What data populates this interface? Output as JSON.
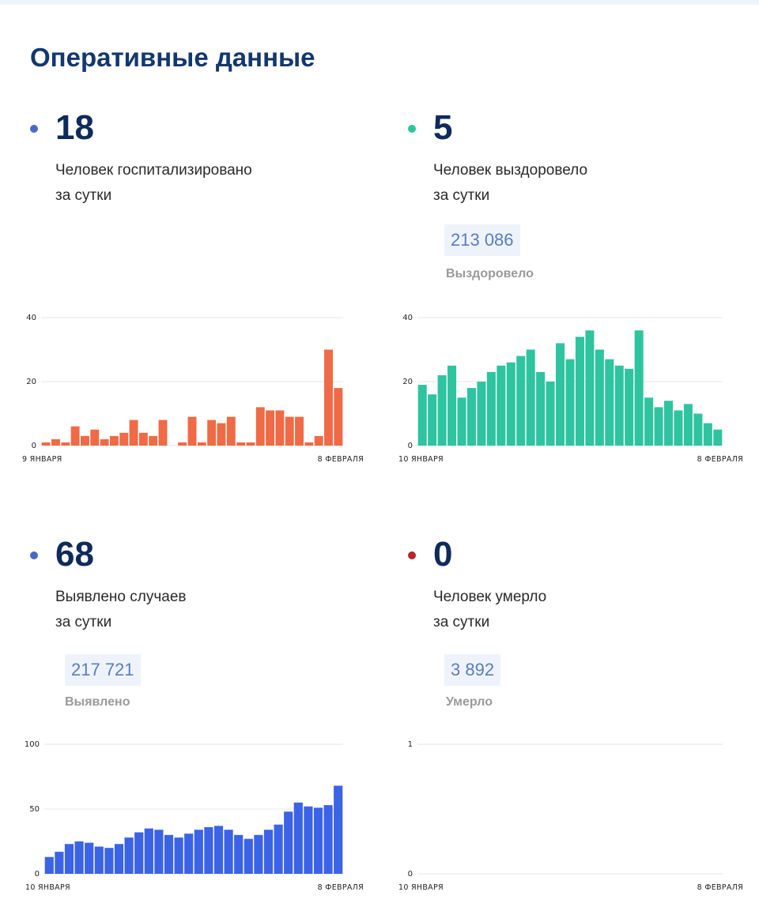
{
  "heading": "Оперативные данные",
  "stats": [
    {
      "key": "hosp",
      "value": "18",
      "desc": "Человек госпитализировано\nза сутки",
      "dot_color": "#4a68c9"
    },
    {
      "key": "recov",
      "value": "5",
      "desc": "Человек выздоровело\nза сутки",
      "total": "213 086",
      "total_label": "Выздоровело",
      "dot_color": "#2ec4a0"
    },
    {
      "key": "cases",
      "value": "68",
      "desc": "Выявлено случаев\nза сутки",
      "total": "217 721",
      "total_label": "Выявлено",
      "dot_color": "#4a68c9"
    },
    {
      "key": "deaths",
      "value": "0",
      "desc": "Человек умерло\nза сутки",
      "total": "3 892",
      "total_label": "Умерло",
      "dot_color": "#b3262d"
    }
  ],
  "chart_data": [
    {
      "type": "bar",
      "color": "#ef6a45",
      "x_start_label": "9 ЯНВАРЯ",
      "x_end_label": "8 ФЕВРАЛЯ",
      "yticks": [
        0,
        20,
        40
      ],
      "ylim": [
        0,
        40
      ],
      "values": [
        1,
        2,
        1,
        6,
        3,
        5,
        2,
        3,
        4,
        8,
        4,
        3,
        8,
        0,
        1,
        9,
        1,
        8,
        7,
        9,
        1,
        1,
        12,
        11,
        11,
        9,
        9,
        1,
        3,
        30,
        18
      ]
    },
    {
      "type": "bar",
      "color": "#2ec4a0",
      "x_start_label": "10 ЯНВАРЯ",
      "x_end_label": "8 ФЕВРАЛЯ",
      "yticks": [
        0,
        20,
        40
      ],
      "ylim": [
        0,
        40
      ],
      "values": [
        19,
        16,
        22,
        25,
        15,
        18,
        20,
        23,
        25,
        26,
        28,
        30,
        23,
        20,
        32,
        27,
        34,
        36,
        30,
        27,
        25,
        24,
        36,
        15,
        12,
        14,
        11,
        13,
        10,
        7,
        5
      ]
    },
    {
      "type": "bar",
      "color": "#3b63e6",
      "x_start_label": "10 ЯНВАРЯ",
      "x_end_label": "8 ФЕВРАЛЯ",
      "yticks": [
        0,
        50,
        100
      ],
      "ylim": [
        0,
        100
      ],
      "values": [
        13,
        17,
        23,
        25,
        24,
        21,
        20,
        23,
        28,
        32,
        35,
        34,
        30,
        28,
        31,
        34,
        36,
        37,
        34,
        30,
        27,
        30,
        34,
        38,
        48,
        55,
        52,
        51,
        53,
        68
      ]
    },
    {
      "type": "bar",
      "color": "#b3262d",
      "x_start_label": "10 ЯНВАРЯ",
      "x_end_label": "8 ФЕВРАЛЯ",
      "yticks": [
        0,
        1
      ],
      "ylim": [
        0,
        1
      ],
      "values": [
        0,
        0,
        0,
        0,
        0,
        0,
        0,
        0,
        0,
        0,
        0,
        0,
        0,
        0,
        0,
        0,
        0,
        0,
        0,
        0,
        0,
        0,
        0,
        0,
        0,
        0,
        0,
        0,
        0,
        0
      ]
    }
  ]
}
